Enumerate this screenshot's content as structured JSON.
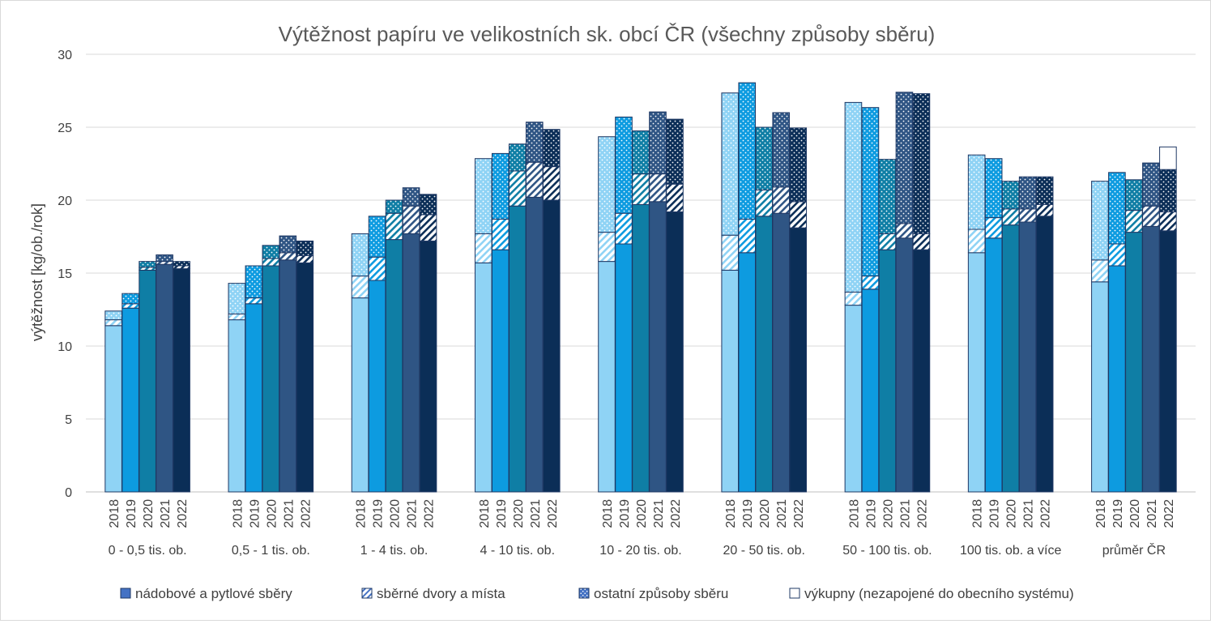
{
  "chart_data": {
    "type": "bar",
    "stacked": true,
    "title": "Výtěžnost papíru ve velikostních sk. obcí ČR (všechny způsoby sběru)",
    "ylabel": "výtěžnost [kg/ob./rok]",
    "xlabel": "",
    "ylim": [
      0,
      30
    ],
    "yticks": [
      0,
      5,
      10,
      15,
      20,
      25,
      30
    ],
    "grid": true,
    "legend_position": "bottom",
    "years": [
      "2018",
      "2019",
      "2020",
      "2021",
      "2022"
    ],
    "year_colors": [
      "#8fd3f5",
      "#0d9be0",
      "#0f7ea5",
      "#2f5584",
      "#0b2e57"
    ],
    "groups": [
      {
        "label": "0 - 0,5 tis. ob.",
        "values": [
          [
            11.4,
            0.4,
            0.6,
            0
          ],
          [
            12.6,
            0.3,
            0.7,
            0
          ],
          [
            15.2,
            0.2,
            0.4,
            0
          ],
          [
            15.6,
            0.2,
            0.45,
            0
          ],
          [
            15.3,
            0.2,
            0.3,
            0
          ]
        ]
      },
      {
        "label": "0,5 - 1 tis. ob.",
        "values": [
          [
            11.8,
            0.4,
            2.1,
            0
          ],
          [
            12.9,
            0.4,
            2.2,
            0
          ],
          [
            15.5,
            0.5,
            0.9,
            0
          ],
          [
            15.9,
            0.5,
            1.15,
            0
          ],
          [
            15.7,
            0.5,
            1.0,
            0
          ]
        ]
      },
      {
        "label": "1 - 4 tis. ob.",
        "values": [
          [
            13.3,
            1.5,
            2.9,
            0
          ],
          [
            14.5,
            1.6,
            2.8,
            0
          ],
          [
            17.3,
            1.8,
            0.9,
            0
          ],
          [
            17.7,
            1.9,
            1.25,
            0
          ],
          [
            17.2,
            1.8,
            1.4,
            0
          ]
        ]
      },
      {
        "label": "4 - 10 tis. ob.",
        "values": [
          [
            15.7,
            2.0,
            5.15,
            0
          ],
          [
            16.6,
            2.1,
            4.5,
            0
          ],
          [
            19.6,
            2.4,
            1.85,
            0
          ],
          [
            20.2,
            2.4,
            2.75,
            0
          ],
          [
            20.0,
            2.3,
            2.55,
            0
          ]
        ]
      },
      {
        "label": "10 - 20 tis. ob.",
        "values": [
          [
            15.8,
            2.0,
            6.55,
            0
          ],
          [
            17.0,
            2.1,
            6.6,
            0
          ],
          [
            19.7,
            2.1,
            2.95,
            0
          ],
          [
            19.9,
            1.9,
            4.25,
            0
          ],
          [
            19.2,
            1.9,
            4.45,
            0
          ]
        ]
      },
      {
        "label": "20 - 50 tis. ob.",
        "values": [
          [
            15.2,
            2.4,
            9.75,
            0
          ],
          [
            16.4,
            2.3,
            9.35,
            0
          ],
          [
            18.9,
            1.8,
            4.3,
            0
          ],
          [
            19.1,
            1.8,
            5.1,
            0
          ],
          [
            18.1,
            1.8,
            5.05,
            0
          ]
        ]
      },
      {
        "label": "50 - 100 tis. ob.",
        "values": [
          [
            12.8,
            0.9,
            13.0,
            0
          ],
          [
            13.9,
            0.9,
            11.55,
            0
          ],
          [
            16.6,
            1.1,
            5.1,
            0
          ],
          [
            17.4,
            1.0,
            9.0,
            0
          ],
          [
            16.6,
            1.1,
            9.6,
            0
          ]
        ]
      },
      {
        "label": "100 tis. ob. a více",
        "values": [
          [
            16.4,
            1.6,
            5.1,
            0
          ],
          [
            17.4,
            1.4,
            4.05,
            0
          ],
          [
            18.3,
            1.1,
            1.9,
            0
          ],
          [
            18.5,
            0.9,
            2.2,
            0
          ],
          [
            18.9,
            0.8,
            1.9,
            0
          ]
        ]
      },
      {
        "label": "průměr ČR",
        "values": [
          [
            14.4,
            1.5,
            5.4,
            0
          ],
          [
            15.5,
            1.5,
            4.9,
            0
          ],
          [
            17.8,
            1.5,
            2.1,
            0
          ],
          [
            18.2,
            1.4,
            2.95,
            0
          ],
          [
            17.9,
            1.3,
            2.9,
            1.55
          ]
        ]
      }
    ],
    "series": [
      {
        "name": "nádobové a pytlové sběry",
        "pattern": "solid"
      },
      {
        "name": "sběrné dvory a místa",
        "pattern": "hatch"
      },
      {
        "name": "ostatní způsoby sběru",
        "pattern": "dots"
      },
      {
        "name": "výkupny (nezapojené do obecního systému)",
        "pattern": "empty"
      }
    ],
    "legend_colors": {
      "swatch": "#4472c4",
      "border": "#1f3864"
    }
  }
}
